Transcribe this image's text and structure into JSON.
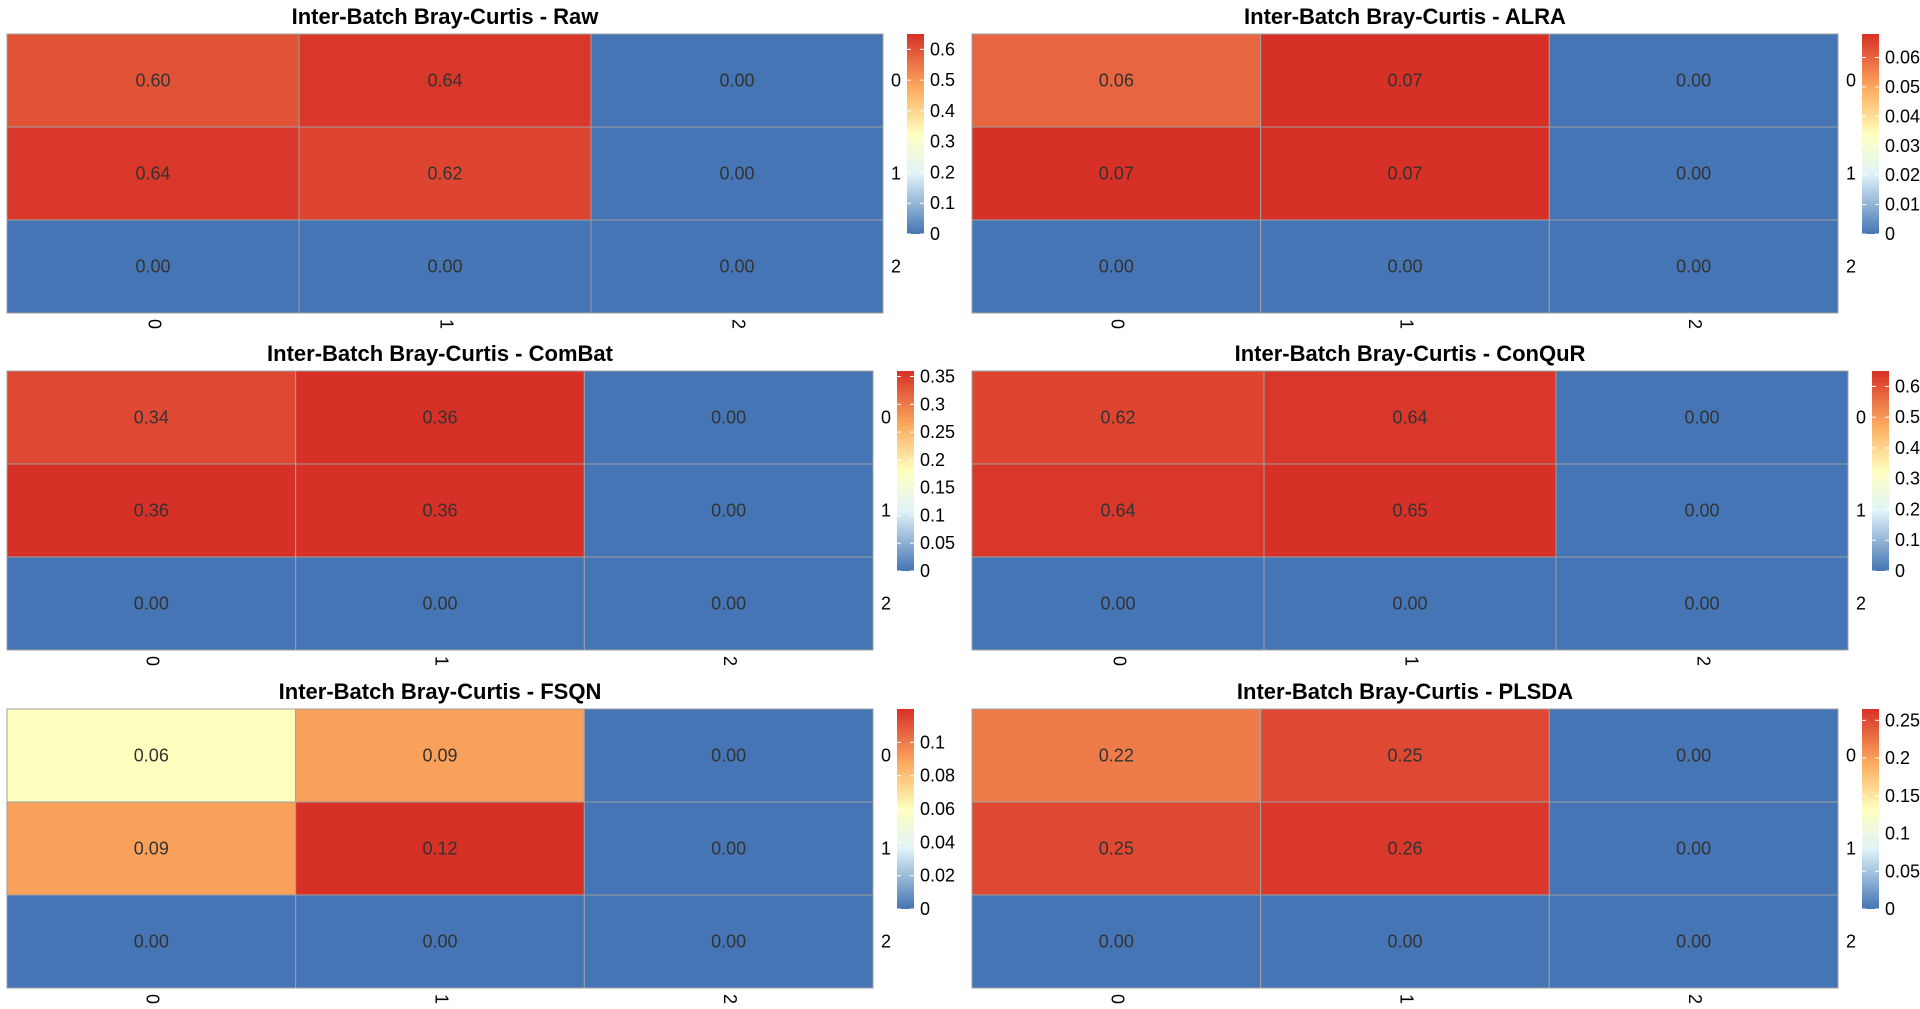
{
  "chart_data": [
    {
      "type": "heatmap",
      "title": "Inter-Batch Bray-Curtis - Raw",
      "rows": [
        "0",
        "1",
        "2"
      ],
      "cols": [
        "0",
        "1",
        "2"
      ],
      "values": [
        [
          0.6,
          0.64,
          0.0
        ],
        [
          0.64,
          0.62,
          0.0
        ],
        [
          0.0,
          0.0,
          0.0
        ]
      ],
      "cell_labels": [
        [
          "0.60",
          "0.64",
          "0.00"
        ],
        [
          "0.64",
          "0.62",
          "0.00"
        ],
        [
          "0.00",
          "0.00",
          "0.00"
        ]
      ],
      "legend": {
        "min": 0,
        "max": 0.65,
        "ticks": [
          0,
          0.1,
          0.2,
          0.3,
          0.4,
          0.5,
          0.6
        ],
        "tick_labels": [
          "0",
          "0.1",
          "0.2",
          "0.3",
          "0.4",
          "0.5",
          "0.6"
        ]
      }
    },
    {
      "type": "heatmap",
      "title": "Inter-Batch Bray-Curtis - ALRA",
      "rows": [
        "0",
        "1",
        "2"
      ],
      "cols": [
        "0",
        "1",
        "2"
      ],
      "values": [
        [
          0.06,
          0.07,
          0.0
        ],
        [
          0.07,
          0.07,
          0.0
        ],
        [
          0.0,
          0.0,
          0.0
        ]
      ],
      "cell_labels": [
        [
          "0.06",
          "0.07",
          "0.00"
        ],
        [
          "0.07",
          "0.07",
          "0.00"
        ],
        [
          "0.00",
          "0.00",
          "0.00"
        ]
      ],
      "legend": {
        "min": 0,
        "max": 0.068,
        "ticks": [
          0,
          0.01,
          0.02,
          0.03,
          0.04,
          0.05,
          0.06
        ],
        "tick_labels": [
          "0",
          "0.01",
          "0.02",
          "0.03",
          "0.04",
          "0.05",
          "0.06"
        ]
      }
    },
    {
      "type": "heatmap",
      "title": "Inter-Batch Bray-Curtis - ComBat",
      "rows": [
        "0",
        "1",
        "2"
      ],
      "cols": [
        "0",
        "1",
        "2"
      ],
      "values": [
        [
          0.34,
          0.36,
          0.0
        ],
        [
          0.36,
          0.36,
          0.0
        ],
        [
          0.0,
          0.0,
          0.0
        ]
      ],
      "cell_labels": [
        [
          "0.34",
          "0.36",
          "0.00"
        ],
        [
          "0.36",
          "0.36",
          "0.00"
        ],
        [
          "0.00",
          "0.00",
          "0.00"
        ]
      ],
      "legend": {
        "min": 0,
        "max": 0.36,
        "ticks": [
          0,
          0.05,
          0.1,
          0.15,
          0.2,
          0.25,
          0.3,
          0.35
        ],
        "tick_labels": [
          "0",
          "0.05",
          "0.1",
          "0.15",
          "0.2",
          "0.25",
          "0.3",
          "0.35"
        ]
      }
    },
    {
      "type": "heatmap",
      "title": "Inter-Batch Bray-Curtis - ConQuR",
      "rows": [
        "0",
        "1",
        "2"
      ],
      "cols": [
        "0",
        "1",
        "2"
      ],
      "values": [
        [
          0.62,
          0.64,
          0.0
        ],
        [
          0.64,
          0.65,
          0.0
        ],
        [
          0.0,
          0.0,
          0.0
        ]
      ],
      "cell_labels": [
        [
          "0.62",
          "0.64",
          "0.00"
        ],
        [
          "0.64",
          "0.65",
          "0.00"
        ],
        [
          "0.00",
          "0.00",
          "0.00"
        ]
      ],
      "legend": {
        "min": 0,
        "max": 0.65,
        "ticks": [
          0,
          0.1,
          0.2,
          0.3,
          0.4,
          0.5,
          0.6
        ],
        "tick_labels": [
          "0",
          "0.1",
          "0.2",
          "0.3",
          "0.4",
          "0.5",
          "0.6"
        ]
      }
    },
    {
      "type": "heatmap",
      "title": "Inter-Batch Bray-Curtis - FSQN",
      "rows": [
        "0",
        "1",
        "2"
      ],
      "cols": [
        "0",
        "1",
        "2"
      ],
      "values": [
        [
          0.06,
          0.09,
          0.0
        ],
        [
          0.09,
          0.12,
          0.0
        ],
        [
          0.0,
          0.0,
          0.0
        ]
      ],
      "cell_labels": [
        [
          "0.06",
          "0.09",
          "0.00"
        ],
        [
          "0.09",
          "0.12",
          "0.00"
        ],
        [
          "0.00",
          "0.00",
          "0.00"
        ]
      ],
      "legend": {
        "min": 0,
        "max": 0.12,
        "ticks": [
          0,
          0.02,
          0.04,
          0.06,
          0.08,
          0.1
        ],
        "tick_labels": [
          "0",
          "0.02",
          "0.04",
          "0.06",
          "0.08",
          "0.1"
        ]
      }
    },
    {
      "type": "heatmap",
      "title": "Inter-Batch Bray-Curtis - PLSDA",
      "rows": [
        "0",
        "1",
        "2"
      ],
      "cols": [
        "0",
        "1",
        "2"
      ],
      "values": [
        [
          0.22,
          0.25,
          0.0
        ],
        [
          0.25,
          0.26,
          0.0
        ],
        [
          0.0,
          0.0,
          0.0
        ]
      ],
      "cell_labels": [
        [
          "0.22",
          "0.25",
          "0.00"
        ],
        [
          "0.25",
          "0.26",
          "0.00"
        ],
        [
          "0.00",
          "0.00",
          "0.00"
        ]
      ],
      "legend": {
        "min": 0,
        "max": 0.265,
        "ticks": [
          0,
          0.05,
          0.1,
          0.15,
          0.2,
          0.25
        ],
        "tick_labels": [
          "0",
          "0.05",
          "0.1",
          "0.15",
          "0.2",
          "0.25"
        ]
      }
    }
  ],
  "colors": {
    "scale_low": "#4575b4",
    "scale_mid_low": "#e0f3f8",
    "scale_mid": "#ffffbf",
    "scale_mid_high": "#fdae61",
    "scale_high": "#d73027",
    "grid_line": "#a0a0a0"
  }
}
